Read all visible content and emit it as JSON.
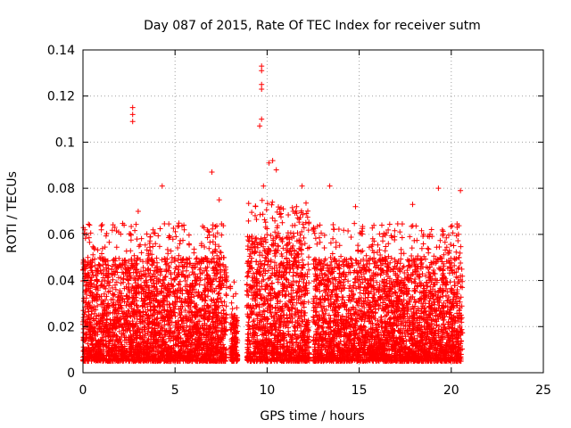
{
  "chart_data": {
    "type": "scatter",
    "title": "Day 087 of 2015, Rate Of TEC Index for receiver sutm",
    "xlabel": "GPS time / hours",
    "ylabel": "ROTI / TECUs",
    "xlim": [
      0,
      25
    ],
    "ylim": [
      0,
      0.14
    ],
    "x_ticks": [
      0,
      5,
      10,
      15,
      20,
      25
    ],
    "x_tick_labels": [
      "0",
      "5",
      "10",
      "15",
      "20",
      "25"
    ],
    "y_ticks": [
      0,
      0.02,
      0.04,
      0.06,
      0.08,
      0.1,
      0.12,
      0.14
    ],
    "y_tick_labels": [
      "0",
      "0.02",
      "0.04",
      "0.06",
      "0.08",
      "0.1",
      "0.12",
      "0.14"
    ],
    "grid": true,
    "marker": "+",
    "marker_color": "#ff0000",
    "series": [
      {
        "name": "ROTI",
        "description": "Dense scatter of ROTI samples; bulk between 0.005 and 0.05 TECU/s",
        "data_segments": [
          {
            "start_hour": 0.0,
            "end_hour": 7.8,
            "typical_range": [
              0.005,
              0.05
            ]
          },
          {
            "start_hour": 8.0,
            "end_hour": 8.4,
            "typical_range": [
              0.005,
              0.025
            ]
          },
          {
            "start_hour": 8.9,
            "end_hour": 12.3,
            "typical_range": [
              0.005,
              0.06
            ]
          },
          {
            "start_hour": 12.5,
            "end_hour": 20.6,
            "typical_range": [
              0.005,
              0.05
            ]
          }
        ],
        "notable_points": [
          {
            "x": 2.7,
            "y": 0.115
          },
          {
            "x": 2.7,
            "y": 0.112
          },
          {
            "x": 2.7,
            "y": 0.109
          },
          {
            "x": 9.7,
            "y": 0.133
          },
          {
            "x": 9.7,
            "y": 0.131
          },
          {
            "x": 9.7,
            "y": 0.125
          },
          {
            "x": 9.7,
            "y": 0.123
          },
          {
            "x": 9.7,
            "y": 0.11
          },
          {
            "x": 9.6,
            "y": 0.107
          },
          {
            "x": 10.3,
            "y": 0.092
          },
          {
            "x": 10.1,
            "y": 0.091
          },
          {
            "x": 10.5,
            "y": 0.088
          },
          {
            "x": 7.0,
            "y": 0.087
          },
          {
            "x": 4.3,
            "y": 0.081
          },
          {
            "x": 9.8,
            "y": 0.081
          },
          {
            "x": 13.4,
            "y": 0.081
          },
          {
            "x": 19.3,
            "y": 0.08
          },
          {
            "x": 20.5,
            "y": 0.079
          },
          {
            "x": 7.4,
            "y": 0.075
          },
          {
            "x": 17.9,
            "y": 0.073
          },
          {
            "x": 14.8,
            "y": 0.072
          },
          {
            "x": 0.1,
            "y": 0.062
          },
          {
            "x": 0.2,
            "y": 0.06
          },
          {
            "x": 1.0,
            "y": 0.062
          },
          {
            "x": 3.0,
            "y": 0.07
          },
          {
            "x": 5.5,
            "y": 0.062
          },
          {
            "x": 11.9,
            "y": 0.081
          }
        ]
      }
    ]
  }
}
